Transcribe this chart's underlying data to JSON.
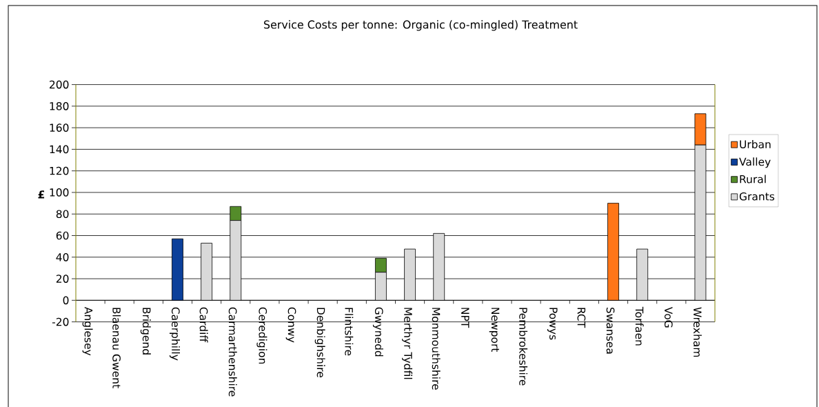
{
  "chart_data": {
    "type": "bar",
    "title": "Service Costs per tonne: Organic (co-mingled) Treatment",
    "ylabel": "£",
    "categories": [
      "Anglesey",
      "Blaenau Gwent",
      "Bridgend",
      "Caerphilly",
      "Cardiff",
      "Carmarthenshire",
      "Ceredigion",
      "Conwy",
      "Denbighshire",
      "Flintshire",
      "Gwynedd",
      "Merthyr Tydfil",
      "Monmouthshire",
      "NPT",
      "Newport",
      "Pembrokeshire",
      "Powys",
      "RCT",
      "Swansea",
      "Torfaen",
      "VoG",
      "Wrexham"
    ],
    "series": [
      {
        "name": "Grants",
        "color": "#d9d9d9",
        "values": [
          null,
          null,
          null,
          null,
          53,
          74,
          null,
          null,
          null,
          null,
          26,
          47.5,
          62,
          null,
          null,
          null,
          null,
          null,
          null,
          47.5,
          null,
          144
        ]
      },
      {
        "name": "Rural",
        "color": "#548c2a",
        "values": [
          null,
          null,
          null,
          null,
          null,
          13,
          null,
          null,
          null,
          null,
          13,
          null,
          null,
          null,
          null,
          null,
          null,
          null,
          null,
          null,
          null,
          null
        ]
      },
      {
        "name": "Valley",
        "color": "#0c409a",
        "values": [
          null,
          null,
          null,
          57,
          null,
          null,
          null,
          null,
          null,
          null,
          null,
          null,
          null,
          null,
          null,
          null,
          null,
          null,
          null,
          null,
          null,
          null
        ]
      },
      {
        "name": "Urban",
        "color": "#ff7618",
        "values": [
          null,
          null,
          null,
          null,
          null,
          null,
          null,
          null,
          null,
          null,
          null,
          null,
          null,
          null,
          null,
          null,
          null,
          null,
          90,
          null,
          null,
          29
        ]
      }
    ],
    "stacked": true,
    "ylim": [
      -20,
      200
    ],
    "yticks": [
      -20,
      0,
      20,
      40,
      60,
      80,
      100,
      120,
      140,
      160,
      180,
      200
    ],
    "grid": "y",
    "legend": "right"
  }
}
